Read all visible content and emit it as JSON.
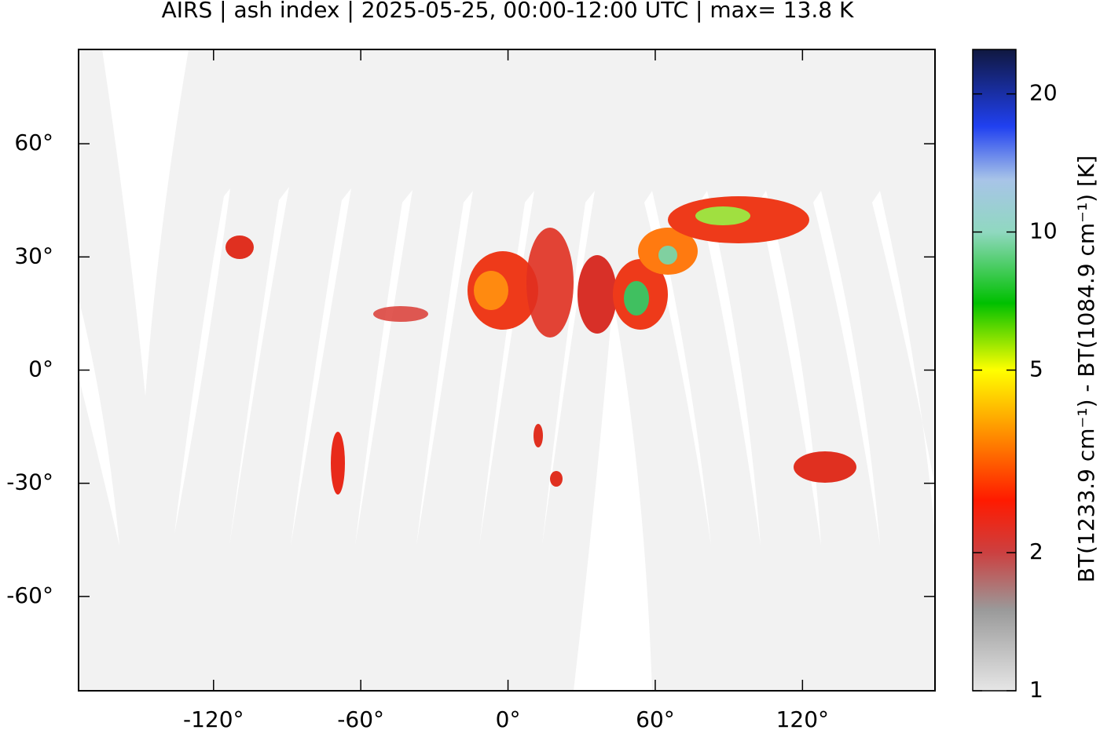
{
  "chart_data": {
    "type": "map",
    "title": "AIRS | ash index | 2025-05-25, 00:00-12:00 UTC | max= 13.8 K",
    "xlim": [
      -175,
      174
    ],
    "ylim": [
      -85,
      85
    ],
    "xticks": [
      {
        "value": -120,
        "label": "-120°"
      },
      {
        "value": -60,
        "label": "-60°"
      },
      {
        "value": 0,
        "label": "0°"
      },
      {
        "value": 60,
        "label": "60°"
      },
      {
        "value": 120,
        "label": "120°"
      }
    ],
    "yticks": [
      {
        "value": -60,
        "label": "-60°"
      },
      {
        "value": -30,
        "label": "-30°"
      },
      {
        "value": 0,
        "label": "0°"
      },
      {
        "value": 30,
        "label": "30°"
      },
      {
        "value": 60,
        "label": "60°"
      }
    ],
    "background_color": "#f2f2f2",
    "colorbar": {
      "label": "BT(1233.9 cm⁻¹) - BT(1084.9 cm⁻¹) [K]",
      "scale": "log",
      "lim": [
        1,
        25
      ],
      "ticks": [
        1,
        2,
        5,
        10,
        20
      ],
      "colormap": [
        {
          "value": 1,
          "color": "#e6e6e6"
        },
        {
          "value": 1.5,
          "color": "#9a9a9a"
        },
        {
          "value": 2,
          "color": "#cc4040"
        },
        {
          "value": 2.6,
          "color": "#ff1a00"
        },
        {
          "value": 3.6,
          "color": "#ff8c00"
        },
        {
          "value": 5,
          "color": "#ffff00"
        },
        {
          "value": 7,
          "color": "#00c000"
        },
        {
          "value": 10,
          "color": "#90d8c0"
        },
        {
          "value": 13,
          "color": "#a8c4e8"
        },
        {
          "value": 17,
          "color": "#2040f0"
        },
        {
          "value": 25,
          "color": "#101840"
        }
      ]
    }
  }
}
